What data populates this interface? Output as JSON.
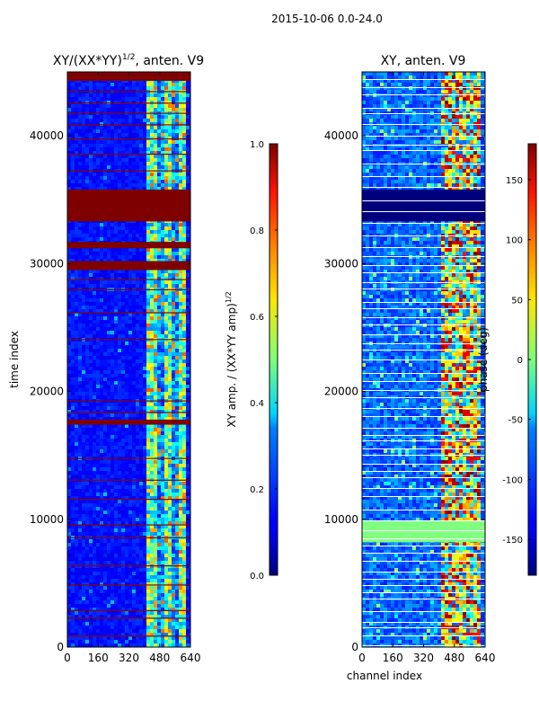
{
  "suptitle": "2015-10-06 0.0-24.0",
  "chart_data": [
    {
      "type": "heatmap",
      "title_main": "XY/(XX*YY)",
      "title_sup": "1/2",
      "title_rest": ", anten. V9",
      "xlabel": "",
      "ylabel": "time index",
      "x_ticks": [
        0,
        160,
        320,
        480,
        640
      ],
      "y_ticks": [
        0,
        10000,
        20000,
        30000,
        40000
      ],
      "xlim": [
        0,
        640
      ],
      "ylim": [
        0,
        45000
      ],
      "colormap": "jet",
      "colorbar": {
        "label_main": "XY amp. / (XX*YY amp)",
        "label_sup": "1/2",
        "range": [
          0.0,
          1.0
        ],
        "ticks": [
          "0.0",
          "0.2",
          "0.4",
          "0.6",
          "0.8",
          "1.0"
        ]
      },
      "flagged_time_ranges": [
        [
          33300,
          35800
        ],
        [
          44300,
          45000
        ],
        [
          31200,
          31700
        ],
        [
          29500,
          30200
        ],
        [
          17400,
          17800
        ]
      ],
      "flagged_time_lines": [
        43500,
        42600,
        41800,
        40900,
        39800,
        38600,
        37300,
        28800,
        28000,
        26200,
        24100,
        19300,
        18400,
        14800,
        13100,
        11600,
        9600,
        8600,
        6400,
        4900,
        2900,
        2300,
        900
      ],
      "active_channel_range": [
        410,
        600
      ]
    },
    {
      "type": "heatmap",
      "title": "XY, anten. V9",
      "xlabel": "channel index",
      "ylabel": "",
      "x_ticks": [
        0,
        160,
        320,
        480,
        640
      ],
      "y_ticks": [
        0,
        10000,
        20000,
        30000,
        40000
      ],
      "xlim": [
        0,
        640
      ],
      "ylim": [
        0,
        45000
      ],
      "colormap": "jet",
      "colorbar": {
        "label": "phase (deg)",
        "range": [
          -180,
          180
        ],
        "ticks": [
          "-150",
          "-100",
          "-50",
          "0",
          "50",
          "100",
          "150"
        ],
        "tick_values": [
          -150,
          -100,
          -50,
          0,
          50,
          100,
          150
        ]
      },
      "flagged_time_ranges": [
        [
          33300,
          35800
        ],
        [
          8200,
          9900
        ]
      ],
      "active_channel_range": [
        400,
        600
      ]
    }
  ]
}
